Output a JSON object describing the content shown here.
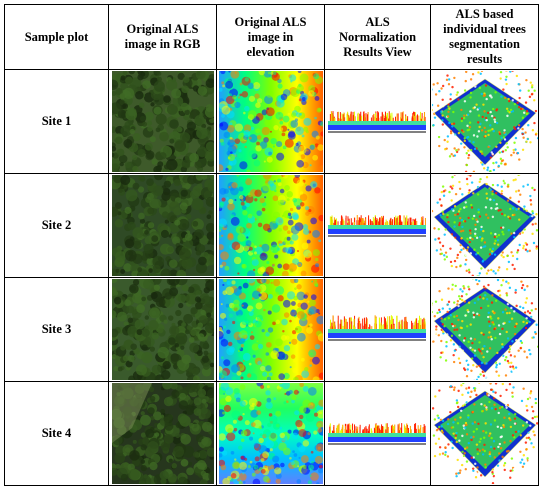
{
  "table": {
    "headers": [
      "Sample plot",
      "Original ALS image in RGB",
      "Original ALS image in elevation",
      "ALS Normalization Results View",
      "ALS based individual trees segmentation results"
    ],
    "rows": [
      {
        "site": "Site 1",
        "rgb_icon": "aerial-forest-rgb-image",
        "elev_icon": "elevation-heatmap-image",
        "norm_icon": "normalized-point-cloud-profile",
        "seg_icon": "segmented-tree-point-cloud-3d"
      },
      {
        "site": "Site 2",
        "rgb_icon": "aerial-forest-rgb-image",
        "elev_icon": "elevation-heatmap-image",
        "norm_icon": "normalized-point-cloud-profile",
        "seg_icon": "segmented-tree-point-cloud-3d"
      },
      {
        "site": "Site 3",
        "rgb_icon": "aerial-forest-rgb-image",
        "elev_icon": "elevation-heatmap-image",
        "norm_icon": "normalized-point-cloud-profile",
        "seg_icon": "segmented-tree-point-cloud-3d"
      },
      {
        "site": "Site 4",
        "rgb_icon": "aerial-forest-rgb-image",
        "elev_icon": "elevation-heatmap-image",
        "norm_icon": "normalized-point-cloud-profile",
        "seg_icon": "segmented-tree-point-cloud-3d"
      }
    ]
  }
}
